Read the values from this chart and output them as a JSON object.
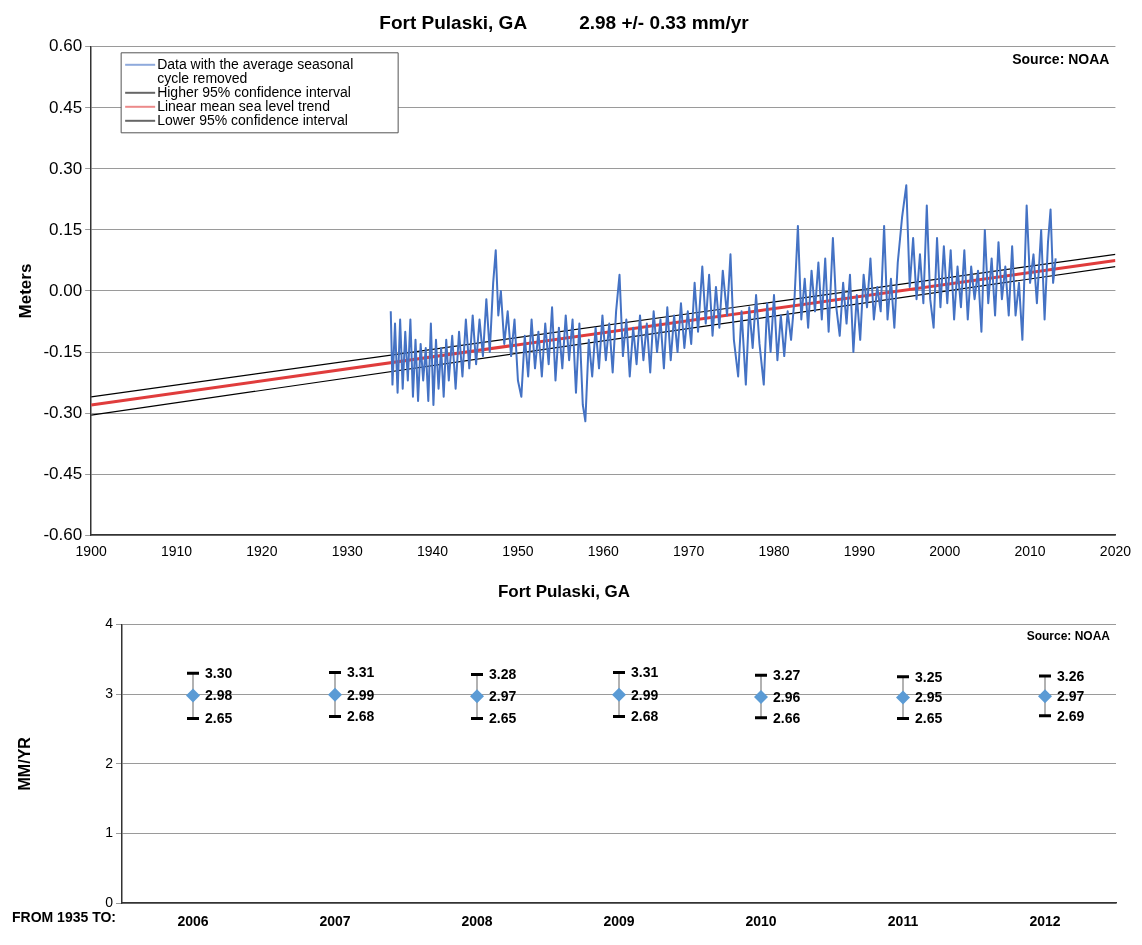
{
  "chart_data": [
    {
      "type": "line",
      "title": "Fort Pulaski, GA          2.98 +/- 0.33 mm/yr",
      "ylabel": "Meters",
      "xlim": [
        1900,
        2020
      ],
      "xticks": [
        1900,
        1910,
        1920,
        1930,
        1940,
        1950,
        1960,
        1970,
        1980,
        1990,
        2000,
        2010,
        2020
      ],
      "ylim": [
        -0.6,
        0.6
      ],
      "yticks": [
        {
          "value": -0.6,
          "label": "-0.60"
        },
        {
          "value": -0.45,
          "label": "-0.45"
        },
        {
          "value": -0.3,
          "label": "-0.30"
        },
        {
          "value": -0.15,
          "label": "-0.15"
        },
        {
          "value": 0,
          "label": "0.00"
        },
        {
          "value": 0.15,
          "label": "0.15"
        },
        {
          "value": 0.3,
          "label": "0.30"
        },
        {
          "value": 0.45,
          "label": "0.45"
        },
        {
          "value": 0.6,
          "label": "0.60"
        }
      ],
      "grid": "y",
      "legend": "top left",
      "annotations": [
        "Source: NOAA"
      ],
      "series": [
        {
          "name": "Data with the average seasonal cycle removed",
          "color": "#4472c4",
          "x": [
            1935.1,
            1935.3,
            1935.6,
            1935.9,
            1936.2,
            1936.5,
            1936.8,
            1937.1,
            1937.4,
            1937.7,
            1938.0,
            1938.3,
            1938.6,
            1938.9,
            1939.2,
            1939.5,
            1939.8,
            1940.1,
            1940.4,
            1940.7,
            1941.0,
            1941.3,
            1941.6,
            1941.9,
            1942.3,
            1942.7,
            1943.1,
            1943.5,
            1943.9,
            1944.3,
            1944.7,
            1945.1,
            1945.5,
            1945.9,
            1946.3,
            1946.7,
            1947.1,
            1947.4,
            1947.7,
            1948.0,
            1948.4,
            1948.8,
            1949.2,
            1949.6,
            1950.0,
            1950.4,
            1950.8,
            1951.2,
            1951.6,
            1952.0,
            1952.4,
            1952.8,
            1953.2,
            1953.6,
            1954.0,
            1954.4,
            1954.8,
            1955.2,
            1955.6,
            1956.0,
            1956.4,
            1956.8,
            1957.2,
            1957.6,
            1957.9,
            1958.3,
            1958.7,
            1959.1,
            1959.5,
            1959.9,
            1960.3,
            1960.7,
            1961.1,
            1961.5,
            1961.9,
            1962.3,
            1962.7,
            1963.1,
            1963.5,
            1963.9,
            1964.3,
            1964.7,
            1965.1,
            1965.5,
            1965.9,
            1966.3,
            1966.7,
            1967.1,
            1967.5,
            1967.9,
            1968.3,
            1968.7,
            1969.1,
            1969.5,
            1969.9,
            1970.3,
            1970.7,
            1971.1,
            1971.6,
            1972.0,
            1972.4,
            1972.8,
            1973.2,
            1973.6,
            1974.0,
            1974.5,
            1974.9,
            1975.3,
            1975.8,
            1976.2,
            1976.7,
            1977.1,
            1977.5,
            1977.9,
            1978.3,
            1978.8,
            1979.2,
            1979.6,
            1980.0,
            1980.4,
            1980.8,
            1981.2,
            1981.6,
            1982.0,
            1982.4,
            1982.8,
            1983.2,
            1983.6,
            1984.0,
            1984.4,
            1984.8,
            1985.2,
            1985.6,
            1986.0,
            1986.4,
            1986.9,
            1987.3,
            1987.7,
            1988.1,
            1988.5,
            1988.9,
            1989.3,
            1989.7,
            1990.1,
            1990.5,
            1990.9,
            1991.3,
            1991.7,
            1992.1,
            1992.5,
            1992.9,
            1993.3,
            1993.7,
            1994.1,
            1994.5,
            1995.0,
            1995.5,
            1995.9,
            1996.3,
            1996.7,
            1997.1,
            1997.5,
            1997.9,
            1998.3,
            1998.7,
            1999.1,
            1999.5,
            1999.9,
            2000.3,
            2000.7,
            2001.1,
            2001.5,
            2001.9,
            2002.3,
            2002.7,
            2003.1,
            2003.5,
            2003.9,
            2004.3,
            2004.7,
            2005.1,
            2005.5,
            2005.9,
            2006.3,
            2006.7,
            2007.1,
            2007.5,
            2007.9,
            2008.3,
            2008.7,
            2009.1,
            2009.6,
            2010.0,
            2010.4,
            2010.8,
            2011.3,
            2011.7,
            2012.1,
            2012.4,
            2012.7,
            2013.0
          ],
          "values": [
            -0.05,
            -0.23,
            -0.08,
            -0.25,
            -0.07,
            -0.24,
            -0.1,
            -0.22,
            -0.07,
            -0.26,
            -0.12,
            -0.27,
            -0.13,
            -0.22,
            -0.14,
            -0.27,
            -0.08,
            -0.28,
            -0.12,
            -0.24,
            -0.14,
            -0.26,
            -0.12,
            -0.22,
            -0.11,
            -0.24,
            -0.1,
            -0.21,
            -0.07,
            -0.19,
            -0.06,
            -0.18,
            -0.07,
            -0.16,
            -0.02,
            -0.15,
            0.02,
            0.1,
            -0.06,
            0.0,
            -0.13,
            -0.05,
            -0.16,
            -0.07,
            -0.22,
            -0.26,
            -0.11,
            -0.21,
            -0.07,
            -0.19,
            -0.1,
            -0.21,
            -0.08,
            -0.18,
            -0.04,
            -0.22,
            -0.09,
            -0.19,
            -0.06,
            -0.17,
            -0.07,
            -0.25,
            -0.08,
            -0.28,
            -0.32,
            -0.12,
            -0.21,
            -0.09,
            -0.19,
            -0.06,
            -0.17,
            -0.08,
            -0.2,
            -0.05,
            0.04,
            -0.16,
            -0.07,
            -0.21,
            -0.09,
            -0.18,
            -0.06,
            -0.17,
            -0.08,
            -0.2,
            -0.05,
            -0.15,
            -0.07,
            -0.19,
            -0.04,
            -0.17,
            -0.06,
            -0.15,
            -0.03,
            -0.14,
            -0.05,
            -0.13,
            0.02,
            -0.1,
            0.06,
            -0.08,
            0.04,
            -0.11,
            0.01,
            -0.09,
            0.05,
            -0.06,
            0.09,
            -0.12,
            -0.21,
            -0.05,
            -0.23,
            -0.04,
            -0.14,
            -0.01,
            -0.13,
            -0.23,
            -0.03,
            -0.15,
            -0.01,
            -0.17,
            -0.06,
            -0.16,
            -0.05,
            -0.12,
            -0.02,
            0.16,
            -0.07,
            0.03,
            -0.09,
            0.05,
            -0.05,
            0.07,
            -0.07,
            0.08,
            -0.1,
            0.13,
            -0.04,
            -0.11,
            0.02,
            -0.08,
            0.04,
            -0.15,
            -0.01,
            -0.12,
            0.04,
            -0.04,
            0.08,
            -0.07,
            0.01,
            -0.05,
            0.16,
            -0.07,
            0.03,
            -0.09,
            0.07,
            0.18,
            0.26,
            0.01,
            0.13,
            -0.02,
            0.09,
            -0.03,
            0.21,
            -0.02,
            -0.09,
            0.13,
            -0.04,
            0.11,
            -0.03,
            0.1,
            -0.07,
            0.06,
            -0.04,
            0.1,
            -0.07,
            0.06,
            -0.02,
            0.05,
            -0.1,
            0.15,
            -0.03,
            0.08,
            -0.06,
            0.12,
            -0.02,
            0.06,
            -0.06,
            0.11,
            -0.06,
            0.02,
            -0.12,
            0.21,
            0.02,
            0.09,
            -0.03,
            0.15,
            -0.07,
            0.12,
            0.2,
            0.02,
            0.08
          ]
        },
        {
          "name": "Higher 95% confidence interval",
          "color": "#000000",
          "x": [
            1900,
            2020
          ],
          "values": [
            -0.26,
            0.09
          ]
        },
        {
          "name": "Linear mean sea level trend",
          "color": "#e03c3c",
          "x": [
            1900,
            2020
          ],
          "values": [
            -0.28,
            0.075
          ]
        },
        {
          "name": "Lower 95% confidence interval",
          "color": "#000000",
          "x": [
            1900,
            2020
          ],
          "values": [
            -0.305,
            0.06
          ]
        }
      ]
    },
    {
      "type": "scatter",
      "title": "Fort Pulaski, GA",
      "ylabel": "MM/YR",
      "xlabel": "FROM 1935 TO:",
      "categories": [
        "2006",
        "2007",
        "2008",
        "2009",
        "2010",
        "2011",
        "2012"
      ],
      "values": [
        2.98,
        2.99,
        2.97,
        2.99,
        2.96,
        2.95,
        2.97
      ],
      "color": "#5b9bd5",
      "marker": "diamond",
      "errors": [
        [
          2.65,
          3.3
        ],
        [
          2.68,
          3.31
        ],
        [
          2.65,
          3.28
        ],
        [
          2.68,
          3.31
        ],
        [
          2.66,
          3.27
        ],
        [
          2.65,
          3.25
        ],
        [
          2.69,
          3.26
        ]
      ],
      "data_labels": true,
      "ylim": [
        0,
        4
      ],
      "yticks": [
        0,
        1,
        2,
        3,
        4
      ],
      "grid": "y",
      "annotations": [
        "Source: NOAA",
        {
          "text": "3.30",
          "x": "2006",
          "y": 3.3
        },
        {
          "text": "2.65",
          "x": "2006",
          "y": 2.65
        },
        {
          "text": "3.31",
          "x": "2007",
          "y": 3.31
        },
        {
          "text": "2.68",
          "x": "2007",
          "y": 2.68
        },
        {
          "text": "3.28",
          "x": "2008",
          "y": 3.28
        },
        {
          "text": "2.65",
          "x": "2008",
          "y": 2.65
        },
        {
          "text": "3.31",
          "x": "2009",
          "y": 3.31
        },
        {
          "text": "2.68",
          "x": "2009",
          "y": 2.68
        },
        {
          "text": "3.27",
          "x": "2010",
          "y": 3.27
        },
        {
          "text": "2.66",
          "x": "2010",
          "y": 2.66
        },
        {
          "text": "3.25",
          "x": "2011",
          "y": 3.25
        },
        {
          "text": "2.65",
          "x": "2011",
          "y": 2.65
        },
        {
          "text": "3.26",
          "x": "2012",
          "y": 3.26
        },
        {
          "text": "2.69",
          "x": "2012",
          "y": 2.69
        }
      ]
    }
  ]
}
